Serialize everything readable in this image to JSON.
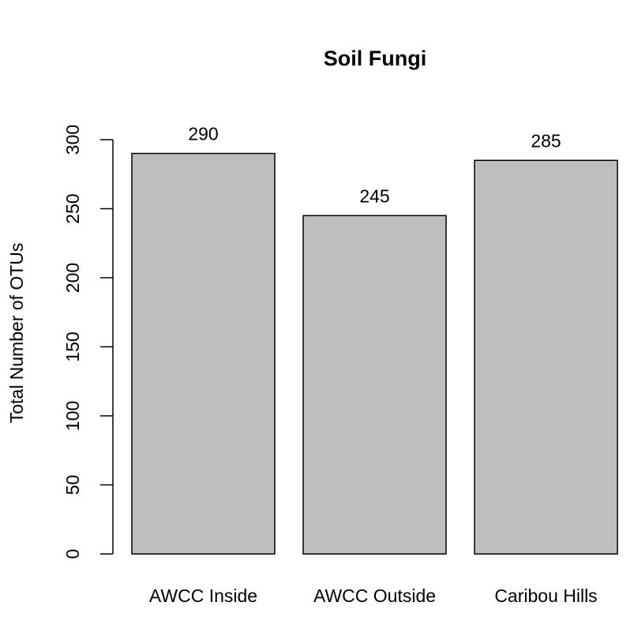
{
  "chart_data": {
    "type": "bar",
    "title": "Soil Fungi",
    "ylabel": "Total Number of OTUs",
    "xlabel": "",
    "categories": [
      "AWCC Inside",
      "AWCC Outside",
      "Caribou Hills"
    ],
    "values": [
      290,
      245,
      285
    ],
    "data_labels": [
      "290",
      "245",
      "285"
    ],
    "ylim": [
      0,
      300
    ],
    "yticks": [
      0,
      50,
      100,
      150,
      200,
      250,
      300
    ],
    "bar_color": "#bebebe",
    "edge_color": "#000000",
    "grid": false,
    "legend": "none"
  }
}
